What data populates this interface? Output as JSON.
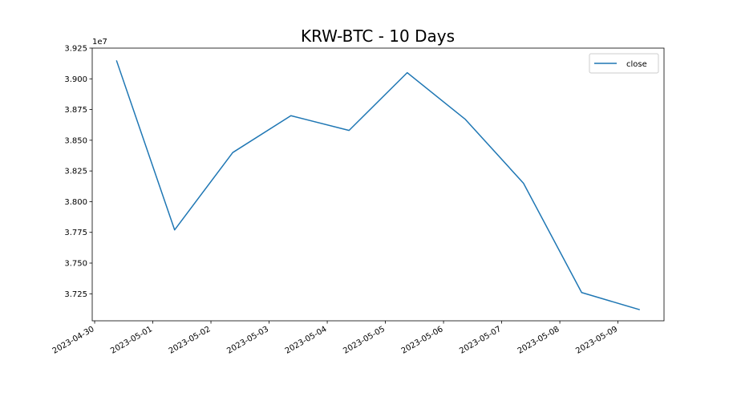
{
  "chart_data": {
    "type": "line",
    "title": "KRW-BTC - 10 Days",
    "xlabel": "",
    "ylabel": "",
    "offset_text": "1e7",
    "y_scale_factor": 10000000,
    "grid": false,
    "legend_position": "top-right",
    "x": [
      "2023-04-30T09:00",
      "2023-05-01T09:00",
      "2023-05-02T09:00",
      "2023-05-03T09:00",
      "2023-05-04T09:00",
      "2023-05-05T09:00",
      "2023-05-06T09:00",
      "2023-05-07T09:00",
      "2023-05-08T09:00",
      "2023-05-09T09:00"
    ],
    "series": [
      {
        "name": "close",
        "color": "#1f77b4",
        "values": [
          39150000,
          37770000,
          38400000,
          38700000,
          38580000,
          39050000,
          38670000,
          38150000,
          37260000,
          37120000
        ]
      }
    ],
    "x_ticks": [
      "2023-04-30",
      "2023-05-01",
      "2023-05-02",
      "2023-05-03",
      "2023-05-04",
      "2023-05-05",
      "2023-05-06",
      "2023-05-07",
      "2023-05-08",
      "2023-05-09"
    ],
    "y_ticks": [
      37250000,
      37500000,
      37750000,
      38000000,
      38250000,
      38500000,
      38750000,
      39000000,
      39250000
    ],
    "y_tick_labels": [
      "3.725",
      "3.750",
      "3.775",
      "3.800",
      "3.825",
      "3.850",
      "3.875",
      "3.900",
      "3.925"
    ],
    "xlim": [
      "2023-04-29T23:00",
      "2023-05-09T19:00"
    ],
    "ylim": [
      37030000,
      39250000
    ]
  }
}
